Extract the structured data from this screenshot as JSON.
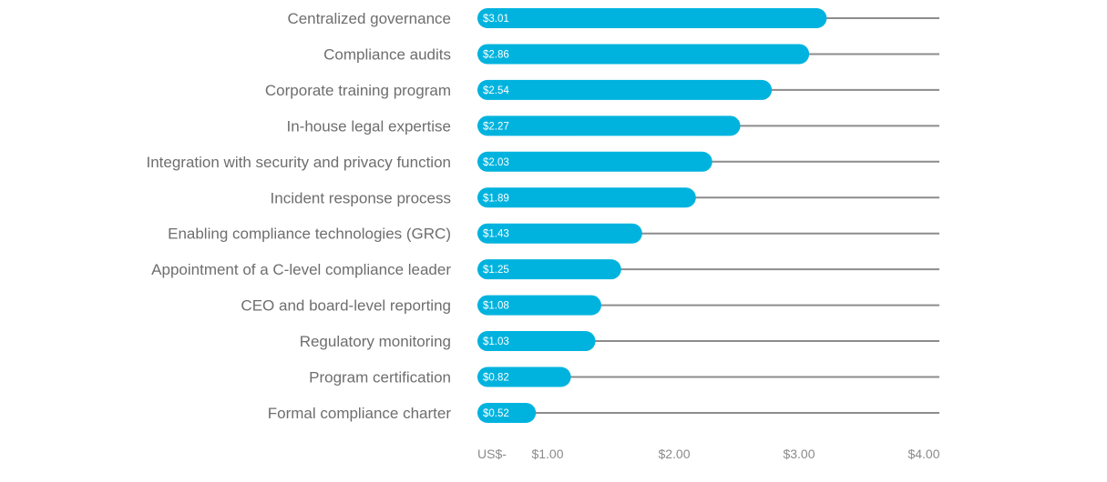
{
  "chart_data": {
    "type": "bar",
    "orientation": "horizontal",
    "categories": [
      "Centralized governance",
      "Compliance audits",
      "Corporate training program",
      "In-house legal expertise",
      "Integration with security and privacy function",
      "Incident response process",
      "Enabling compliance technologies (GRC)",
      "Appointment of a C-level compliance leader",
      "CEO and board-level reporting",
      "Regulatory monitoring",
      "Program certification",
      "Formal compliance charter"
    ],
    "values": [
      3.01,
      2.86,
      2.54,
      2.27,
      2.03,
      1.89,
      1.43,
      1.25,
      1.08,
      1.03,
      0.82,
      0.52
    ],
    "value_labels": [
      "$3.01",
      "$2.86",
      "$2.54",
      "$2.27",
      "$2.03",
      "$1.89",
      "$1.43",
      "$1.25",
      "$1.08",
      "$1.03",
      "$0.82",
      "$0.52"
    ],
    "x_ticks": [
      {
        "value": 0,
        "label": "US$-"
      },
      {
        "value": 1,
        "label": "$1.00"
      },
      {
        "value": 2,
        "label": "$2.00"
      },
      {
        "value": 3,
        "label": "$3.00"
      },
      {
        "value": 4,
        "label": "$4.00"
      }
    ],
    "xlim": [
      0,
      4
    ],
    "title": "",
    "xlabel": "",
    "ylabel": "",
    "grid": false,
    "legend": "none",
    "colors": {
      "bar": "#00b3de",
      "track": "#8c8c8c",
      "category_text": "#6e6e6e",
      "bar_label_text": "#ffffff",
      "tick_text": "#8a8a8a"
    }
  }
}
